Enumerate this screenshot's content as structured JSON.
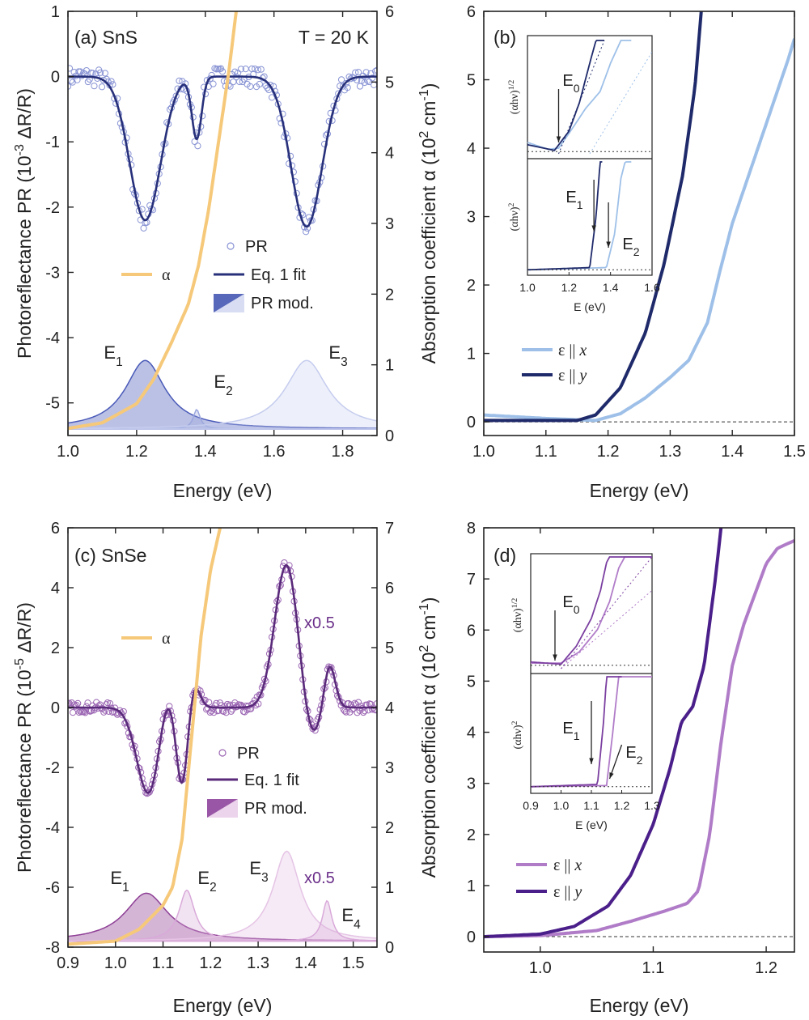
{
  "chart_data": [
    {
      "type": "line",
      "panel_label": "(a) SnS",
      "annotation": "T = 20 K",
      "xlabel": "Energy (eV)",
      "ylabel_left": "Photoreflectance PR (10^-3 ΔR/R)",
      "ylabel_left_parts": [
        "Photoreflectance PR (10",
        "-3",
        " ΔR/R)"
      ],
      "ylabel_right": "Absorption coefficient α (10^2 cm^-1)",
      "ylabel_right_parts": [
        "Absorption coefficient α (10",
        "2",
        " cm",
        "-1",
        ")"
      ],
      "xlim": [
        1.0,
        1.9
      ],
      "ylim_left": [
        -5.5,
        1
      ],
      "ylim_right": [
        0,
        6
      ],
      "xticks": [
        "1.0",
        "1.2",
        "1.4",
        "1.6",
        "1.8"
      ],
      "yticks_left": [
        "1",
        "0",
        "-1",
        "-2",
        "-3",
        "-4",
        "-5"
      ],
      "yticks_right": [
        "6",
        "5",
        "4",
        "3",
        "2",
        "1",
        "0"
      ],
      "legend": [
        "PR",
        "Eq. 1 fit",
        "PR mod.",
        "α"
      ],
      "peak_labels": [
        {
          "name": "E1",
          "base": "E",
          "sub": "1",
          "x": 1.23
        },
        {
          "name": "E2",
          "base": "E",
          "sub": "2",
          "x": 1.375
        },
        {
          "name": "E3",
          "base": "E",
          "sub": "3",
          "x": 1.695
        }
      ],
      "modulus_peaks": [
        {
          "E": 1.225,
          "G": 0.07,
          "A": 1.05,
          "color": "#4a5ab8",
          "opacity": 0.75
        },
        {
          "E": 1.375,
          "G": 0.012,
          "A": 0.3,
          "color": "#9aa6dd",
          "opacity": 0.6
        },
        {
          "E": 1.695,
          "G": 0.075,
          "A": 1.05,
          "color": "#c5ccee",
          "opacity": 0.6
        }
      ],
      "modulus_baseline": -5.4,
      "pr_fit": {
        "baseline": 0.0,
        "dips": [
          {
            "E": 1.225,
            "w": 0.045,
            "d": -2.2
          },
          {
            "E": 1.375,
            "w": 0.014,
            "d": -0.95
          },
          {
            "E": 1.695,
            "w": 0.045,
            "d": -2.3
          }
        ],
        "edge_bump": 0.06
      },
      "alpha_points": [
        [
          1.0,
          0.1
        ],
        [
          1.1,
          0.18
        ],
        [
          1.2,
          0.45
        ],
        [
          1.25,
          0.8
        ],
        [
          1.3,
          1.3
        ],
        [
          1.35,
          1.85
        ],
        [
          1.38,
          2.4
        ],
        [
          1.41,
          3.2
        ],
        [
          1.44,
          4.2
        ],
        [
          1.47,
          5.2
        ],
        [
          1.49,
          6.0
        ]
      ],
      "colors": {
        "pr": "#8893d4",
        "fit": "#27307a",
        "alpha": "#f6c97a"
      }
    },
    {
      "type": "line",
      "panel_label": "(b)",
      "xlabel": "Energy (eV)",
      "ylabel": "",
      "xlim": [
        1.0,
        1.5
      ],
      "ylim": [
        -0.2,
        6
      ],
      "xticks": [
        "1.0",
        "1.1",
        "1.2",
        "1.3",
        "1.4",
        "1.5"
      ],
      "yticks": [
        "0",
        "1",
        "2",
        "3",
        "4",
        "5",
        "6"
      ],
      "series": [
        {
          "name": "ε || x",
          "color": "#9ec0e8",
          "points": [
            [
              1.0,
              0.1
            ],
            [
              1.1,
              0.05
            ],
            [
              1.18,
              0.02
            ],
            [
              1.22,
              0.12
            ],
            [
              1.26,
              0.35
            ],
            [
              1.3,
              0.65
            ],
            [
              1.33,
              0.9
            ],
            [
              1.36,
              1.45
            ],
            [
              1.38,
              2.2
            ],
            [
              1.4,
              2.9
            ],
            [
              1.43,
              3.7
            ],
            [
              1.46,
              4.5
            ],
            [
              1.49,
              5.3
            ],
            [
              1.5,
              5.6
            ]
          ]
        },
        {
          "name": "ε || y",
          "color": "#1f2a6b",
          "points": [
            [
              1.0,
              0.02
            ],
            [
              1.15,
              0.02
            ],
            [
              1.18,
              0.1
            ],
            [
              1.22,
              0.5
            ],
            [
              1.26,
              1.3
            ],
            [
              1.29,
              2.3
            ],
            [
              1.32,
              3.6
            ],
            [
              1.34,
              4.9
            ],
            [
              1.35,
              6.0
            ]
          ]
        }
      ],
      "legend_name_parts": [
        [
          "ε || ",
          "x"
        ],
        [
          "ε || ",
          "y"
        ]
      ],
      "inset": {
        "xlabel": "E (eV)",
        "xlim": [
          1.0,
          1.6
        ],
        "xticks": [
          "1.0",
          "1.2",
          "1.4",
          "1.6"
        ],
        "ylabel_top": "(αhν)^1/2",
        "ylabel_top_parts": [
          "(αhν)",
          "1/2"
        ],
        "ylabel_bottom": "(αhν)^2",
        "ylabel_bottom_parts": [
          "(αhν)",
          "2"
        ],
        "labels_top": [
          {
            "name": "E0",
            "base": "E",
            "sub": "0"
          }
        ],
        "labels_bottom": [
          {
            "name": "E1",
            "base": "E",
            "sub": "1"
          },
          {
            "name": "E2",
            "base": "E",
            "sub": "2"
          }
        ],
        "top_x": [
          [
            1.0,
            0.1
          ],
          [
            1.1,
            0.04
          ],
          [
            1.15,
            0.05
          ],
          [
            1.2,
            0.18
          ],
          [
            1.28,
            0.4
          ],
          [
            1.35,
            0.55
          ],
          [
            1.4,
            0.8
          ],
          [
            1.45,
            1.0
          ],
          [
            1.5,
            1.0
          ]
        ],
        "top_y": [
          [
            1.0,
            0.08
          ],
          [
            1.13,
            0.03
          ],
          [
            1.2,
            0.2
          ],
          [
            1.25,
            0.45
          ],
          [
            1.3,
            0.8
          ],
          [
            1.33,
            1.0
          ],
          [
            1.37,
            1.0
          ]
        ],
        "bottom_x": [
          [
            1.0,
            0.02
          ],
          [
            1.38,
            0.04
          ],
          [
            1.42,
            0.35
          ],
          [
            1.45,
            0.85
          ],
          [
            1.47,
            1.0
          ],
          [
            1.5,
            1.0
          ]
        ],
        "bottom_y": [
          [
            1.0,
            0.02
          ],
          [
            1.3,
            0.04
          ],
          [
            1.33,
            0.5
          ],
          [
            1.35,
            1.0
          ],
          [
            1.36,
            1.0
          ]
        ]
      },
      "reference_line": 0
    },
    {
      "type": "line",
      "panel_label": "(c) SnSe",
      "xlabel": "Energy (eV)",
      "ylabel_left": "Photoreflectance PR (10^-5 ΔR/R)",
      "ylabel_left_parts": [
        "Photoreflectance PR (10",
        "-5",
        " ΔR/R)"
      ],
      "ylabel_right": "Absorption coefficient α (10^2 cm^-1)",
      "ylabel_right_parts": [
        "Absorption coefficient α (10",
        "2",
        " cm",
        "-1",
        ")"
      ],
      "xlim": [
        0.9,
        1.55
      ],
      "ylim_left": [
        -8,
        6
      ],
      "ylim_right": [
        0,
        7
      ],
      "xticks": [
        "0.9",
        "1.0",
        "1.1",
        "1.2",
        "1.3",
        "1.4",
        "1.5"
      ],
      "yticks_left": [
        "6",
        "4",
        "2",
        "0",
        "-2",
        "-4",
        "-6",
        "-8"
      ],
      "yticks_right": [
        "7",
        "6",
        "5",
        "4",
        "3",
        "2",
        "1",
        "0"
      ],
      "legend": [
        "PR",
        "Eq. 1 fit",
        "PR mod.",
        "α"
      ],
      "scale_labels": [
        "x0.5",
        "x0.5"
      ],
      "peak_labels": [
        {
          "name": "E1",
          "base": "E",
          "sub": "1",
          "x": 1.07
        },
        {
          "name": "E2",
          "base": "E",
          "sub": "2",
          "x": 1.15
        },
        {
          "name": "E3",
          "base": "E",
          "sub": "3",
          "x": 1.36
        },
        {
          "name": "E4",
          "base": "E",
          "sub": "4",
          "x": 1.445
        }
      ],
      "modulus_peaks": [
        {
          "E": 1.065,
          "G": 0.055,
          "A": 1.6,
          "color": "#8e3f95",
          "opacity": 0.7
        },
        {
          "E": 1.15,
          "G": 0.02,
          "A": 1.7,
          "color": "#d9a9d9",
          "opacity": 0.6
        },
        {
          "E": 1.36,
          "G": 0.035,
          "A": 3.0,
          "color": "#e5c4e5",
          "opacity": 0.65
        },
        {
          "E": 1.445,
          "G": 0.012,
          "A": 1.35,
          "color": "#d9a9d9",
          "opacity": 0.6
        }
      ],
      "modulus_baseline": -7.8,
      "pr_fit": {
        "baseline": 0.0,
        "dips": [
          {
            "E": 1.07,
            "w": 0.025,
            "d": -2.9
          },
          {
            "E": 1.14,
            "w": 0.012,
            "d": -2.6
          },
          {
            "E": 1.41,
            "w": 0.02,
            "d": -1.2
          }
        ],
        "peaks": [
          {
            "E": 1.105,
            "w": 0.015,
            "d": 0.9
          },
          {
            "E": 1.165,
            "w": 0.012,
            "d": 0.8
          },
          {
            "E": 1.36,
            "w": 0.025,
            "d": 4.8
          },
          {
            "E": 1.45,
            "w": 0.012,
            "d": 1.5
          }
        ]
      },
      "alpha_points": [
        [
          0.9,
          0.05
        ],
        [
          1.0,
          0.1
        ],
        [
          1.05,
          0.3
        ],
        [
          1.1,
          0.7
        ],
        [
          1.12,
          1.0
        ],
        [
          1.14,
          1.8
        ],
        [
          1.16,
          3.5
        ],
        [
          1.18,
          5.2
        ],
        [
          1.2,
          6.3
        ],
        [
          1.22,
          7.0
        ]
      ],
      "colors": {
        "pr": "#9b66b3",
        "fit": "#5a2a7a",
        "alpha": "#f6c97a"
      }
    },
    {
      "type": "line",
      "panel_label": "(d)",
      "xlabel": "Energy (eV)",
      "ylabel": "",
      "xlim": [
        0.95,
        1.225
      ],
      "ylim": [
        -0.3,
        8
      ],
      "xticks": [
        "1.0",
        "1.1",
        "1.2"
      ],
      "yticks": [
        "0",
        "1",
        "2",
        "3",
        "4",
        "5",
        "6",
        "7",
        "8"
      ],
      "series": [
        {
          "name": "ε || x",
          "color": "#b07cc8",
          "points": [
            [
              0.95,
              0.0
            ],
            [
              1.0,
              0.02
            ],
            [
              1.05,
              0.12
            ],
            [
              1.08,
              0.3
            ],
            [
              1.11,
              0.5
            ],
            [
              1.13,
              0.65
            ],
            [
              1.14,
              0.9
            ],
            [
              1.15,
              2.0
            ],
            [
              1.16,
              3.8
            ],
            [
              1.17,
              5.3
            ],
            [
              1.18,
              6.1
            ],
            [
              1.19,
              6.7
            ],
            [
              1.2,
              7.3
            ],
            [
              1.21,
              7.6
            ],
            [
              1.225,
              7.75
            ]
          ]
        },
        {
          "name": "ε || y",
          "color": "#4b1f8a",
          "points": [
            [
              0.95,
              0.0
            ],
            [
              1.0,
              0.05
            ],
            [
              1.03,
              0.2
            ],
            [
              1.06,
              0.6
            ],
            [
              1.08,
              1.2
            ],
            [
              1.1,
              2.2
            ],
            [
              1.115,
              3.3
            ],
            [
              1.125,
              4.2
            ],
            [
              1.135,
              4.5
            ],
            [
              1.145,
              5.3
            ],
            [
              1.155,
              7.0
            ],
            [
              1.16,
              8.0
            ]
          ]
        }
      ],
      "legend_name_parts": [
        [
          "ε || ",
          "x"
        ],
        [
          "ε || ",
          "y"
        ]
      ],
      "inset": {
        "xlabel": "E (eV)",
        "xlim": [
          0.9,
          1.3
        ],
        "xticks": [
          "0.9",
          "1.0",
          "1.1",
          "1.2",
          "1.3"
        ],
        "ylabel_top": "(αhν)^1/2",
        "ylabel_top_parts": [
          "(αhν)",
          "1/2"
        ],
        "ylabel_bottom": "(αhν)^2",
        "ylabel_bottom_parts": [
          "(αhν)",
          "2"
        ],
        "labels_top": [
          {
            "name": "E0",
            "base": "E",
            "sub": "0"
          }
        ],
        "labels_bottom": [
          {
            "name": "E1",
            "base": "E",
            "sub": "1"
          },
          {
            "name": "E2",
            "base": "E",
            "sub": "2"
          }
        ],
        "top_x": [
          [
            0.9,
            0.05
          ],
          [
            1.0,
            0.05
          ],
          [
            1.06,
            0.15
          ],
          [
            1.12,
            0.35
          ],
          [
            1.16,
            0.6
          ],
          [
            1.19,
            0.9
          ],
          [
            1.21,
            1.0
          ],
          [
            1.3,
            1.0
          ]
        ],
        "top_y": [
          [
            0.9,
            0.06
          ],
          [
            1.0,
            0.04
          ],
          [
            1.05,
            0.2
          ],
          [
            1.1,
            0.45
          ],
          [
            1.13,
            0.7
          ],
          [
            1.15,
            0.95
          ],
          [
            1.16,
            1.0
          ],
          [
            1.3,
            1.0
          ]
        ],
        "bottom_x": [
          [
            0.9,
            0.03
          ],
          [
            1.15,
            0.04
          ],
          [
            1.17,
            0.5
          ],
          [
            1.19,
            1.0
          ],
          [
            1.3,
            1.0
          ]
        ],
        "bottom_y": [
          [
            0.9,
            0.03
          ],
          [
            1.12,
            0.05
          ],
          [
            1.14,
            0.6
          ],
          [
            1.15,
            1.0
          ],
          [
            1.2,
            1.0
          ]
        ]
      },
      "reference_line": 0
    }
  ]
}
